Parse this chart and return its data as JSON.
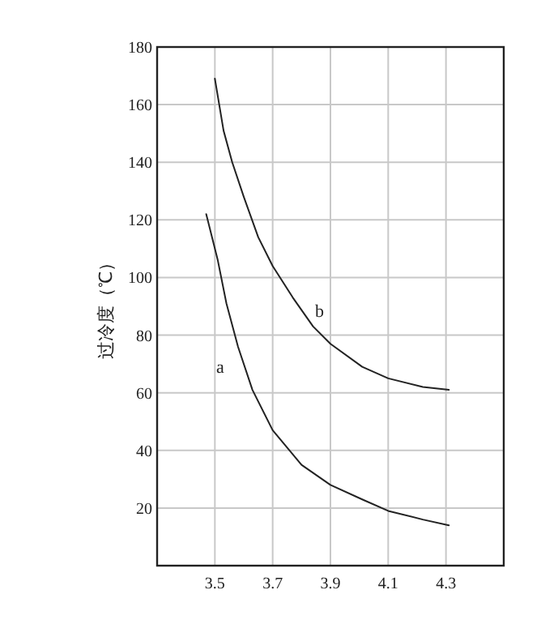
{
  "chart_data": {
    "type": "line",
    "ylabel": "过冷度（℃）",
    "xlim": [
      3.3,
      4.5
    ],
    "xticks": [
      3.5,
      3.7,
      3.9,
      4.1,
      4.3
    ],
    "ylim": [
      0,
      180
    ],
    "yticks": [
      20,
      40,
      60,
      80,
      100,
      120,
      140,
      160,
      180
    ],
    "grid": true,
    "line_style": "solid",
    "marker": "none",
    "series": [
      {
        "name": "a",
        "color": "#222222",
        "x": [
          3.47,
          3.51,
          3.54,
          3.58,
          3.63,
          3.7,
          3.8,
          3.9,
          4.01,
          4.1,
          4.22,
          4.31
        ],
        "values": [
          122,
          106,
          91,
          76,
          61,
          47,
          35,
          28,
          23,
          19,
          16,
          14
        ]
      },
      {
        "name": "b",
        "color": "#222222",
        "x": [
          3.5,
          3.53,
          3.56,
          3.6,
          3.65,
          3.7,
          3.77,
          3.84,
          3.9,
          4.01,
          4.1,
          4.22,
          4.31
        ],
        "values": [
          169,
          151,
          140,
          128,
          114,
          104,
          93,
          83,
          77,
          69,
          65,
          62,
          61
        ]
      }
    ]
  }
}
